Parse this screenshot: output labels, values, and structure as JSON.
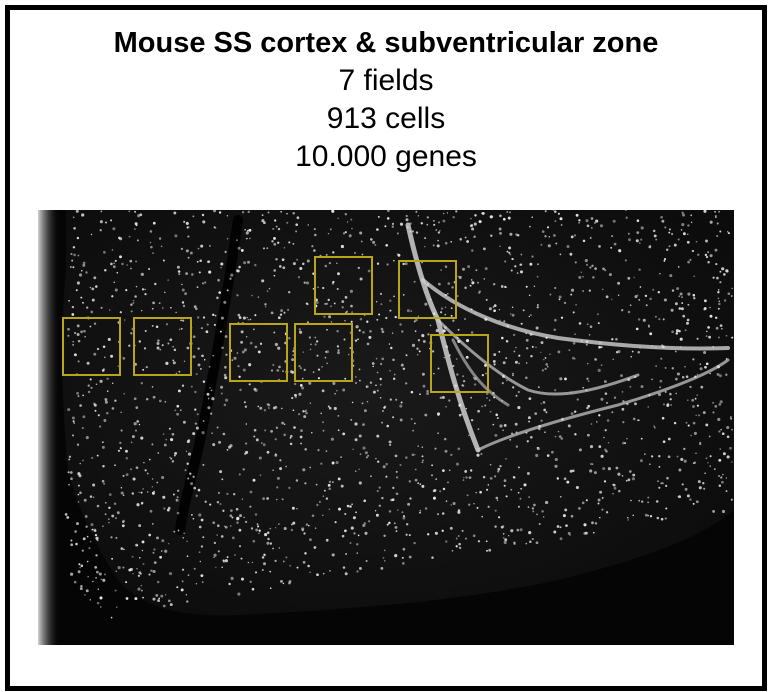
{
  "figure": {
    "title": "Mouse SS cortex & subventricular zone",
    "fields_label": "7 fields",
    "cells_label": "913 cells",
    "genes_label": "10.000 genes"
  },
  "colors": {
    "frame": "#000000",
    "field_box": "#b8a51c",
    "tissue_background": "#050505",
    "cell_dots": "#e6e6e6"
  },
  "micrograph": {
    "description_icon": "tissue-micrograph",
    "field_count": 7
  }
}
